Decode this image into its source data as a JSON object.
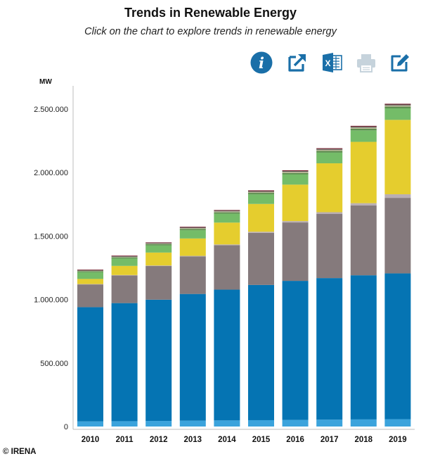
{
  "header": {
    "title": "Trends in Renewable Energy",
    "subtitle": "Click on the chart to explore trends in renewable energy"
  },
  "toolbar": {
    "icons": [
      "info-icon",
      "external-link-icon",
      "excel-export-icon",
      "print-icon",
      "edit-icon"
    ],
    "colors": {
      "primary": "#1a6fa8",
      "disabled": "#c6d3dc"
    }
  },
  "footer": {
    "copyright": "© IRENA"
  },
  "chart_data": {
    "type": "bar",
    "stacked": true,
    "unit_label": "MW",
    "categories": [
      "2010",
      "2011",
      "2012",
      "2013",
      "2014",
      "2015",
      "2016",
      "2017",
      "2018",
      "2019"
    ],
    "y_ticks": [
      "0",
      "500.000",
      "1.000.000",
      "1.500.000",
      "2.000.000",
      "2.500.000"
    ],
    "y_tick_values": [
      0,
      500000,
      1000000,
      1500000,
      2000000,
      2500000
    ],
    "ylim": [
      0,
      2600000
    ],
    "grid": false,
    "series": [
      {
        "color": "#3ba3dc",
        "values": [
          40000,
          42000,
          44000,
          46000,
          48000,
          50000,
          52000,
          54000,
          56000,
          58000
        ]
      },
      {
        "color": "#0574b3",
        "values": [
          900000,
          930000,
          955000,
          998000,
          1030000,
          1065000,
          1095000,
          1115000,
          1135000,
          1148000
        ]
      },
      {
        "color": "#857a7c",
        "values": [
          180000,
          218000,
          265000,
          295000,
          350000,
          410000,
          460000,
          505000,
          550000,
          595000
        ]
      },
      {
        "color": "#b9aeb2",
        "values": [
          2000,
          3000,
          4000,
          5000,
          6000,
          9000,
          11000,
          14000,
          18000,
          28000
        ]
      },
      {
        "color": "#e5cd2e",
        "values": [
          40000,
          72000,
          102000,
          137000,
          172000,
          219000,
          287000,
          385000,
          483000,
          586000
        ]
      },
      {
        "color": "#74bc68",
        "values": [
          53000,
          58000,
          56000,
          65000,
          70000,
          75000,
          80000,
          84000,
          90000,
          90000
        ]
      },
      {
        "color": "#5b8f4e",
        "values": [
          8000,
          9000,
          10000,
          10000,
          11000,
          12000,
          12000,
          13000,
          13000,
          14000
        ]
      },
      {
        "color": "#b5b495",
        "values": [
          5000,
          6000,
          6000,
          7000,
          8000,
          9000,
          10000,
          10000,
          11000,
          11000
        ]
      },
      {
        "color": "#555555",
        "values": [
          4000,
          4000,
          4000,
          5000,
          5000,
          5000,
          5000,
          6000,
          6000,
          6000
        ]
      },
      {
        "color": "#7b2230",
        "values": [
          4000,
          4000,
          4000,
          5000,
          5000,
          6000,
          6000,
          6000,
          6000,
          6000
        ]
      }
    ]
  }
}
